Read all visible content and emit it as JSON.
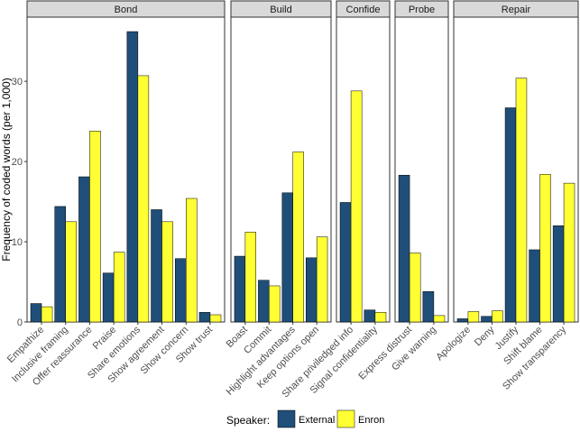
{
  "chart_data": {
    "type": "bar",
    "ylabel": "Frequency of coded words (per 1,000)",
    "xlabel": "",
    "ylim": [
      0,
      38
    ],
    "yticks": [
      0,
      10,
      20,
      30
    ],
    "grid": false,
    "legend_title": "Speaker:",
    "legend_position": "bottom",
    "series": [
      {
        "name": "External",
        "color": "#1f4e79"
      },
      {
        "name": "Enron",
        "color": "#ffff33"
      }
    ],
    "panels": [
      {
        "title": "Bond",
        "categories": [
          "Empathize",
          "Inclusive framing",
          "Offer reassurance",
          "Praise",
          "Share emotions",
          "Show agreement",
          "Show concern",
          "Show trust"
        ],
        "values": [
          [
            2.3,
            14.4,
            18.1,
            6.1,
            36.2,
            14.0,
            7.9,
            1.2
          ],
          [
            1.9,
            12.5,
            23.8,
            8.7,
            30.7,
            12.5,
            15.4,
            0.9
          ]
        ]
      },
      {
        "title": "Build",
        "categories": [
          "Boast",
          "Commit",
          "Highlight advantages",
          "Keep options open"
        ],
        "values": [
          [
            8.2,
            5.2,
            16.1,
            8.0
          ],
          [
            11.2,
            4.5,
            21.2,
            10.6
          ]
        ]
      },
      {
        "title": "Confide",
        "categories": [
          "Share priviledged info",
          "Signal confidentiality"
        ],
        "values": [
          [
            14.9,
            1.5
          ],
          [
            28.8,
            1.2
          ]
        ]
      },
      {
        "title": "Probe",
        "categories": [
          "Express distrust",
          "Give warning"
        ],
        "values": [
          [
            18.3,
            3.8
          ],
          [
            8.6,
            0.8
          ]
        ]
      },
      {
        "title": "Repair",
        "categories": [
          "Apologize",
          "Deny",
          "Justify",
          "Shift blame",
          "Show transparency"
        ],
        "values": [
          [
            0.4,
            0.7,
            26.7,
            9.0,
            12.0
          ],
          [
            1.3,
            1.4,
            30.4,
            18.4,
            17.3
          ]
        ]
      }
    ]
  }
}
